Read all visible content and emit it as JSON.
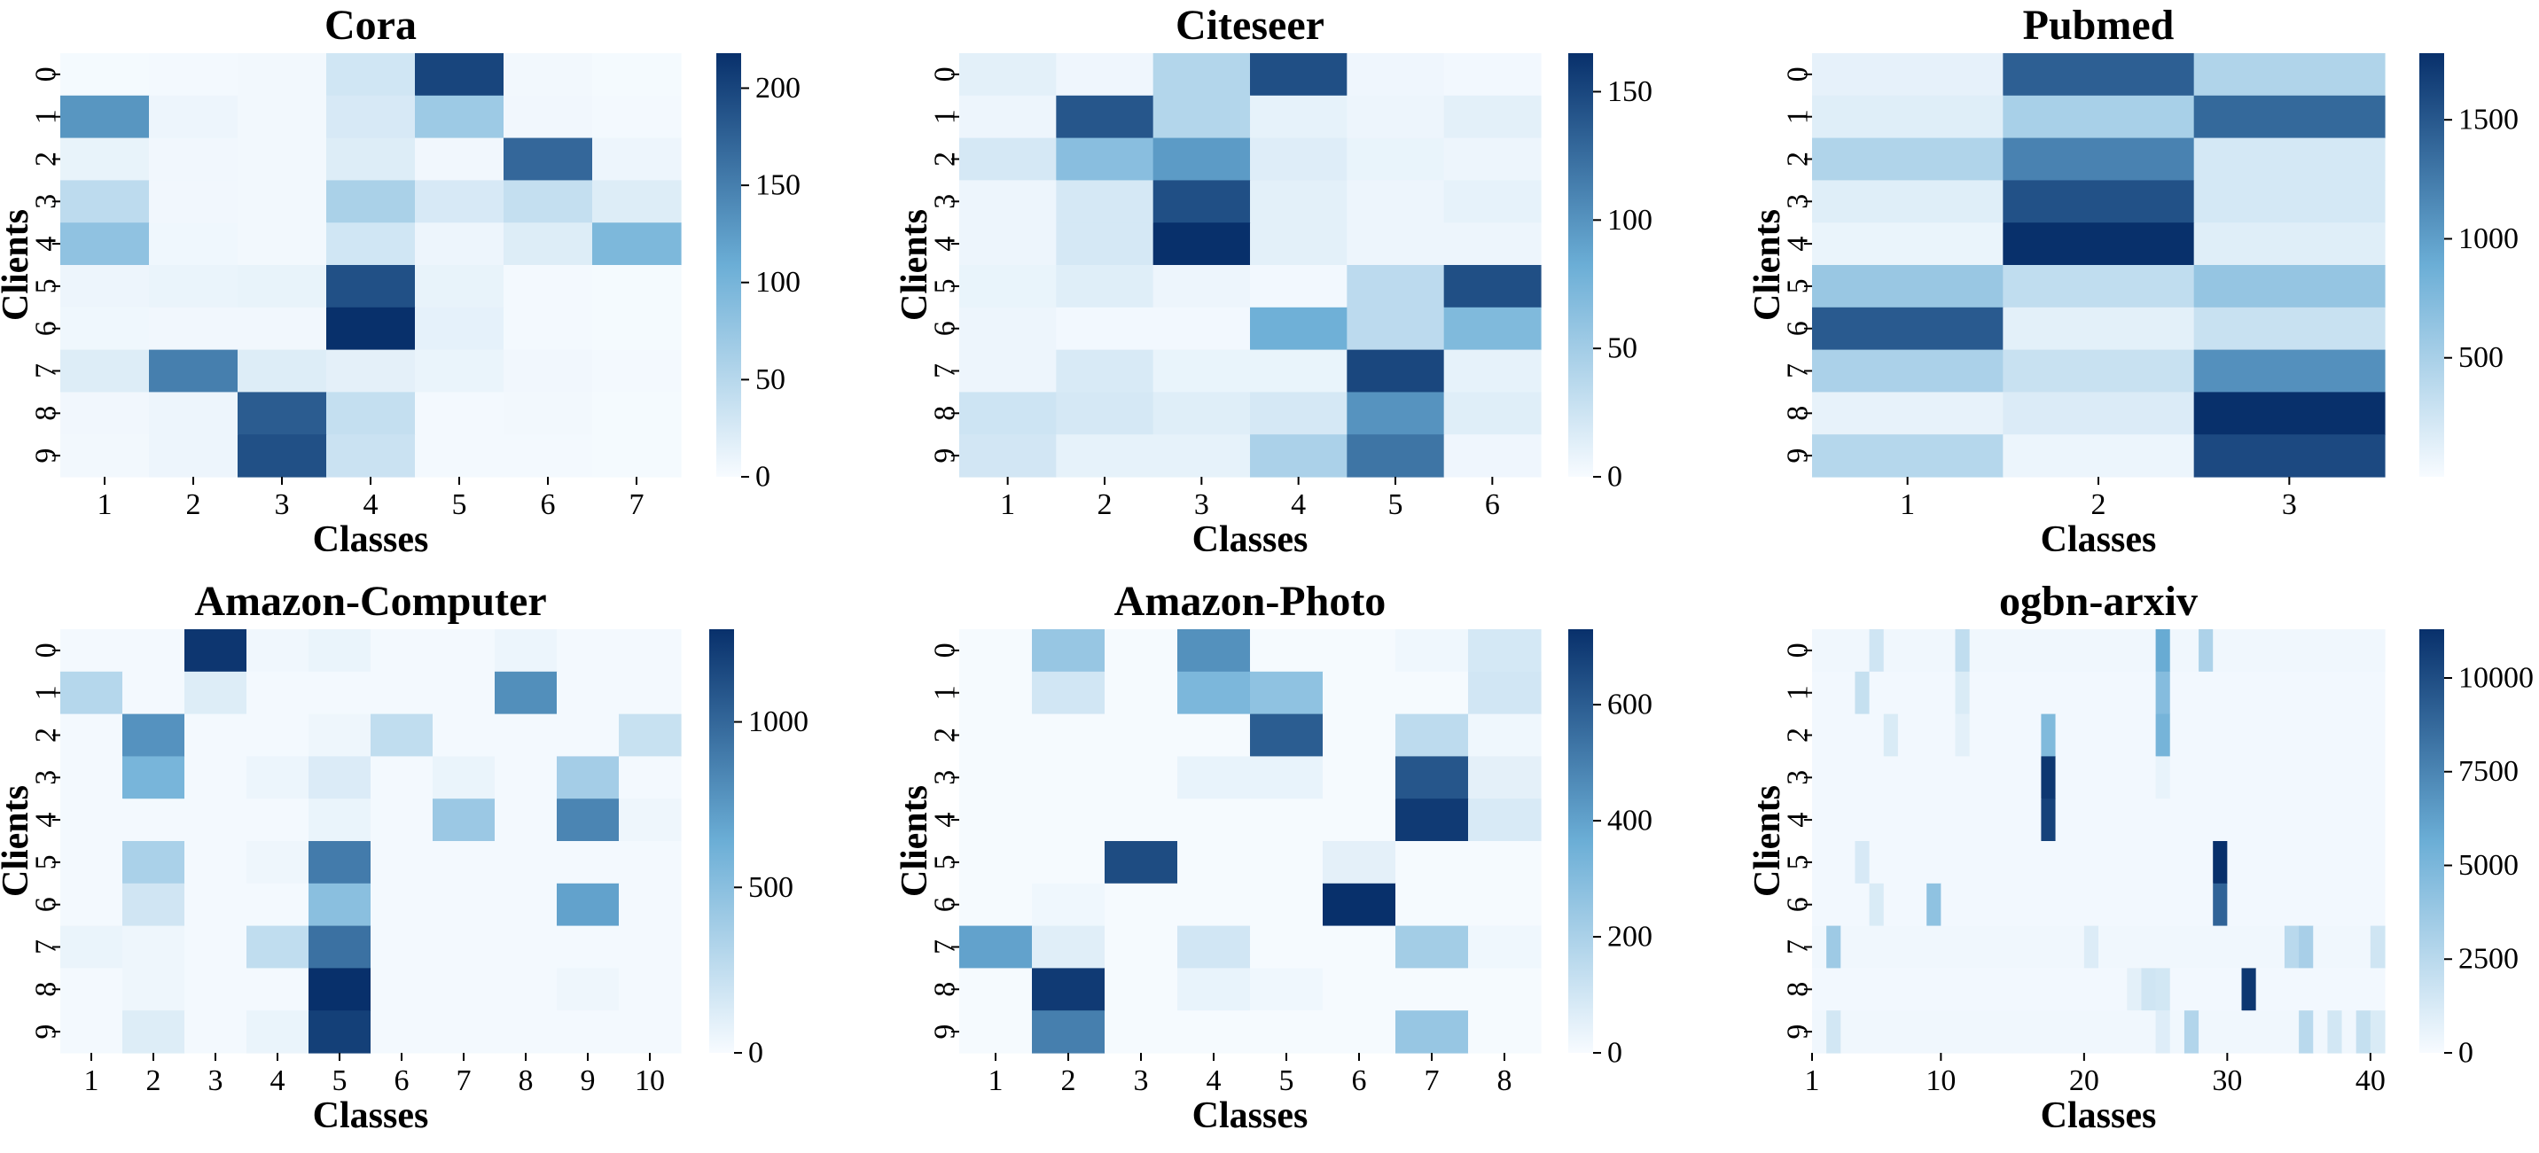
{
  "colors": {
    "low": "#f7fbff",
    "mid": "#6baed6",
    "high": "#08306b",
    "colormap": "Blues"
  },
  "chart_data": [
    {
      "type": "heatmap",
      "title": "Cora",
      "xlabel": "Classes",
      "ylabel": "Clients",
      "x_ticks": [
        "1",
        "2",
        "3",
        "4",
        "5",
        "6",
        "7"
      ],
      "y_ticks": [
        "0",
        "1",
        "2",
        "3",
        "4",
        "5",
        "6",
        "7",
        "8",
        "9"
      ],
      "colorbar_ticks": [
        "0",
        "50",
        "100",
        "150",
        "200"
      ],
      "vmin": 0,
      "vmax": 218,
      "values": [
        [
          2,
          3,
          4,
          30,
          200,
          4,
          2
        ],
        [
          130,
          8,
          4,
          25,
          70,
          5,
          3
        ],
        [
          12,
          5,
          4,
          20,
          5,
          170,
          8
        ],
        [
          45,
          5,
          4,
          60,
          25,
          40,
          20
        ],
        [
          80,
          6,
          4,
          30,
          8,
          20,
          95
        ],
        [
          8,
          10,
          12,
          190,
          12,
          3,
          2
        ],
        [
          6,
          5,
          5,
          218,
          14,
          3,
          2
        ],
        [
          20,
          150,
          20,
          15,
          10,
          5,
          3
        ],
        [
          5,
          8,
          180,
          40,
          3,
          4,
          2
        ],
        [
          4,
          8,
          190,
          35,
          3,
          3,
          2
        ]
      ]
    },
    {
      "type": "heatmap",
      "title": "Citeseer",
      "xlabel": "Classes",
      "ylabel": "Clients",
      "x_ticks": [
        "1",
        "2",
        "3",
        "4",
        "5",
        "6"
      ],
      "y_ticks": [
        "0",
        "1",
        "2",
        "3",
        "4",
        "5",
        "6",
        "7",
        "8",
        "9"
      ],
      "colorbar_ticks": [
        "0",
        "50",
        "100",
        "150"
      ],
      "vmin": 0,
      "vmax": 165,
      "values": [
        [
          12,
          5,
          40,
          145,
          5,
          3
        ],
        [
          6,
          140,
          40,
          10,
          6,
          12
        ],
        [
          20,
          65,
          95,
          15,
          8,
          6
        ],
        [
          6,
          20,
          145,
          12,
          6,
          10
        ],
        [
          6,
          20,
          165,
          12,
          6,
          6
        ],
        [
          8,
          14,
          6,
          3,
          35,
          145
        ],
        [
          6,
          3,
          3,
          80,
          35,
          70
        ],
        [
          6,
          18,
          8,
          8,
          150,
          10
        ],
        [
          25,
          20,
          14,
          20,
          100,
          14
        ],
        [
          22,
          10,
          10,
          45,
          120,
          5
        ]
      ]
    },
    {
      "type": "heatmap",
      "title": "Pubmed",
      "xlabel": "Classes",
      "ylabel": "Clients",
      "x_ticks": [
        "1",
        "2",
        "3"
      ],
      "y_ticks": [
        "0",
        "1",
        "2",
        "3",
        "4",
        "5",
        "6",
        "7",
        "8",
        "9"
      ],
      "colorbar_ticks": [
        "500",
        "1000",
        "1500"
      ],
      "vmin": 0,
      "vmax": 1780,
      "values": [
        [
          110,
          1450,
          450
        ],
        [
          150,
          500,
          1380
        ],
        [
          450,
          1200,
          220
        ],
        [
          150,
          1550,
          220
        ],
        [
          80,
          1780,
          150
        ],
        [
          600,
          350,
          620
        ],
        [
          1480,
          130,
          300
        ],
        [
          480,
          300,
          1100
        ],
        [
          100,
          180,
          1780
        ],
        [
          420,
          70,
          1600
        ]
      ]
    },
    {
      "type": "heatmap",
      "title": "Amazon-Computer",
      "xlabel": "Classes",
      "ylabel": "Clients",
      "x_ticks": [
        "1",
        "2",
        "3",
        "4",
        "5",
        "6",
        "7",
        "8",
        "9",
        "10"
      ],
      "y_ticks": [
        "0",
        "1",
        "2",
        "3",
        "4",
        "5",
        "6",
        "7",
        "8",
        "9"
      ],
      "colorbar_ticks": [
        "0",
        "500",
        "1000"
      ],
      "vmin": 0,
      "vmax": 1280,
      "values": [
        [
          20,
          20,
          1250,
          30,
          60,
          20,
          20,
          50,
          20,
          20
        ],
        [
          300,
          20,
          120,
          20,
          20,
          20,
          20,
          800,
          20,
          20
        ],
        [
          20,
          780,
          20,
          20,
          40,
          250,
          20,
          20,
          20,
          220
        ],
        [
          20,
          580,
          20,
          50,
          130,
          20,
          60,
          20,
          380,
          20
        ],
        [
          20,
          20,
          20,
          20,
          60,
          20,
          420,
          20,
          850,
          40
        ],
        [
          20,
          350,
          20,
          40,
          900,
          20,
          20,
          20,
          20,
          20
        ],
        [
          20,
          180,
          20,
          20,
          500,
          20,
          20,
          20,
          700,
          20
        ],
        [
          60,
          40,
          20,
          250,
          950,
          20,
          20,
          20,
          20,
          20
        ],
        [
          20,
          40,
          20,
          20,
          1280,
          20,
          20,
          20,
          40,
          20
        ],
        [
          20,
          120,
          20,
          60,
          1200,
          20,
          20,
          20,
          20,
          20
        ]
      ]
    },
    {
      "type": "heatmap",
      "title": "Amazon-Photo",
      "xlabel": "Classes",
      "ylabel": "Clients",
      "x_ticks": [
        "1",
        "2",
        "3",
        "4",
        "5",
        "6",
        "7",
        "8"
      ],
      "y_ticks": [
        "0",
        "1",
        "2",
        "3",
        "4",
        "5",
        "6",
        "7",
        "8",
        "9"
      ],
      "colorbar_ticks": [
        "0",
        "200",
        "400",
        "600"
      ],
      "vmin": 0,
      "vmax": 730,
      "values": [
        [
          5,
          250,
          5,
          450,
          5,
          5,
          20,
          90
        ],
        [
          5,
          100,
          5,
          320,
          270,
          5,
          5,
          100
        ],
        [
          5,
          5,
          5,
          5,
          600,
          5,
          150,
          20
        ],
        [
          5,
          5,
          5,
          40,
          40,
          5,
          620,
          50
        ],
        [
          5,
          5,
          5,
          5,
          5,
          5,
          700,
          80
        ],
        [
          5,
          5,
          650,
          5,
          5,
          50,
          5,
          5
        ],
        [
          5,
          20,
          5,
          5,
          5,
          730,
          5,
          5
        ],
        [
          400,
          60,
          5,
          100,
          5,
          5,
          220,
          20
        ],
        [
          5,
          700,
          5,
          40,
          20,
          5,
          5,
          5
        ],
        [
          5,
          500,
          5,
          5,
          5,
          5,
          250,
          5
        ]
      ]
    },
    {
      "type": "heatmap",
      "title": "ogbn-arxiv",
      "xlabel": "Classes",
      "ylabel": "Clients",
      "x_ticks": [
        "1",
        "10",
        "20",
        "30",
        "40"
      ],
      "y_ticks": [
        "0",
        "1",
        "2",
        "3",
        "4",
        "5",
        "6",
        "7",
        "8",
        "9"
      ],
      "colorbar_ticks": [
        "0",
        "2500",
        "5000",
        "7500",
        "10000"
      ],
      "vmin": 0,
      "vmax": 11300,
      "values": [
        [
          300,
          300,
          300,
          300,
          1600,
          300,
          300,
          300,
          300,
          300,
          2200,
          300,
          300,
          300,
          300,
          300,
          300,
          300,
          300,
          300,
          300,
          300,
          300,
          300,
          5800,
          300,
          300,
          3000,
          300,
          300,
          300,
          300,
          300,
          300,
          300,
          300,
          300,
          300,
          300,
          300
        ],
        [
          200,
          200,
          200,
          2000,
          200,
          200,
          200,
          200,
          200,
          200,
          1200,
          200,
          200,
          200,
          200,
          200,
          200,
          200,
          200,
          200,
          200,
          200,
          200,
          200,
          4600,
          200,
          200,
          200,
          200,
          200,
          200,
          200,
          200,
          200,
          200,
          200,
          200,
          200,
          200,
          200
        ],
        [
          200,
          200,
          200,
          200,
          200,
          1200,
          200,
          200,
          200,
          200,
          800,
          200,
          200,
          200,
          200,
          200,
          4800,
          200,
          200,
          200,
          200,
          200,
          200,
          200,
          5200,
          200,
          200,
          200,
          200,
          200,
          200,
          200,
          200,
          200,
          200,
          200,
          200,
          200,
          200,
          200
        ],
        [
          200,
          200,
          200,
          200,
          200,
          200,
          200,
          200,
          200,
          200,
          200,
          200,
          200,
          200,
          200,
          200,
          11000,
          200,
          200,
          200,
          200,
          200,
          200,
          200,
          600,
          200,
          200,
          200,
          200,
          200,
          200,
          200,
          200,
          200,
          200,
          200,
          200,
          200,
          200,
          200
        ],
        [
          200,
          200,
          200,
          200,
          200,
          200,
          200,
          200,
          200,
          200,
          200,
          200,
          200,
          200,
          200,
          200,
          10500,
          200,
          200,
          200,
          200,
          200,
          200,
          200,
          200,
          200,
          200,
          200,
          200,
          200,
          200,
          200,
          200,
          200,
          200,
          200,
          200,
          200,
          200,
          200
        ],
        [
          200,
          200,
          200,
          1300,
          200,
          200,
          200,
          200,
          200,
          200,
          200,
          200,
          200,
          200,
          200,
          200,
          200,
          200,
          200,
          200,
          200,
          200,
          200,
          200,
          200,
          200,
          200,
          200,
          11300,
          200,
          200,
          200,
          200,
          200,
          200,
          200,
          200,
          200,
          200,
          200
        ],
        [
          200,
          200,
          200,
          200,
          1200,
          200,
          200,
          200,
          4200,
          200,
          200,
          200,
          200,
          200,
          200,
          200,
          200,
          200,
          200,
          200,
          200,
          200,
          200,
          200,
          200,
          200,
          200,
          200,
          9000,
          200,
          200,
          200,
          200,
          200,
          200,
          200,
          200,
          200,
          200,
          200
        ],
        [
          300,
          3600,
          300,
          300,
          300,
          300,
          300,
          300,
          300,
          300,
          300,
          300,
          300,
          300,
          300,
          300,
          300,
          300,
          300,
          1100,
          300,
          300,
          300,
          300,
          300,
          300,
          300,
          300,
          300,
          300,
          300,
          300,
          300,
          2500,
          3200,
          300,
          300,
          300,
          300,
          1600
        ],
        [
          200,
          200,
          200,
          200,
          200,
          200,
          200,
          200,
          200,
          200,
          200,
          200,
          200,
          200,
          200,
          200,
          200,
          200,
          200,
          200,
          200,
          200,
          800,
          1600,
          1500,
          200,
          200,
          200,
          200,
          200,
          11000,
          200,
          200,
          200,
          200,
          200,
          200,
          200,
          200,
          200
        ],
        [
          300,
          1500,
          300,
          300,
          300,
          300,
          300,
          300,
          300,
          300,
          300,
          300,
          300,
          300,
          300,
          300,
          300,
          300,
          300,
          300,
          300,
          300,
          300,
          300,
          1000,
          300,
          2800,
          300,
          300,
          300,
          300,
          300,
          300,
          300,
          2500,
          300,
          1500,
          300,
          2000,
          1200
        ]
      ]
    }
  ]
}
